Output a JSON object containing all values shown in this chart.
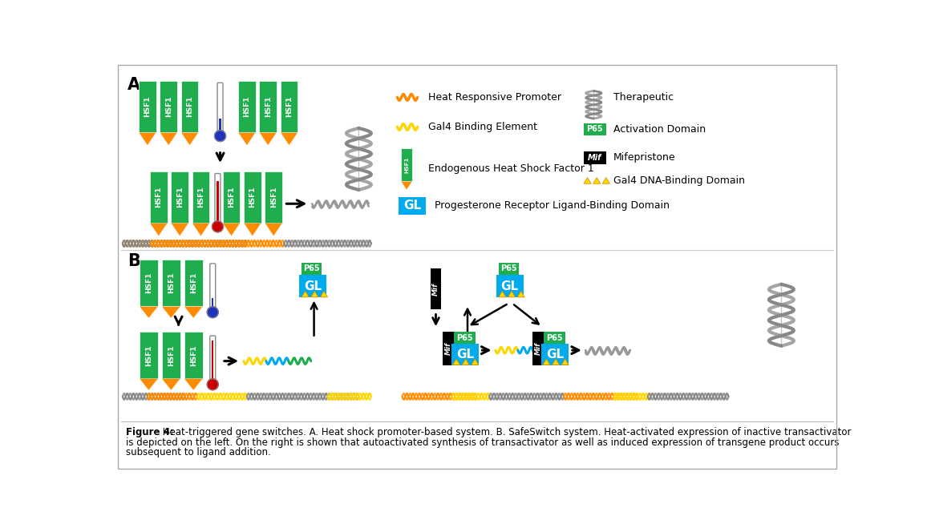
{
  "colors": {
    "green": "#2ECC40",
    "dark_green": "#1FAD4E",
    "orange": "#FF8C00",
    "yellow": "#FFD700",
    "red": "#CC0000",
    "cyan": "#00AAEE",
    "black": "#000000",
    "white": "#FFFFFF",
    "light_gray": "#999999",
    "mid_gray": "#777777",
    "background": "#FFFFFF"
  },
  "caption_bold": "Figure 4:",
  "caption_rest": " Heat-triggered gene switches. A. Heat shock promoter-based system. B. SafeSwitch system. Heat-activated expression of inactive transactivator",
  "caption_line2": "is depicted on the left. On the right is shown that autoactivated synthesis of transactivator as well as induced expression of transgene product occurs",
  "caption_line3": "subsequent to ligand addition."
}
